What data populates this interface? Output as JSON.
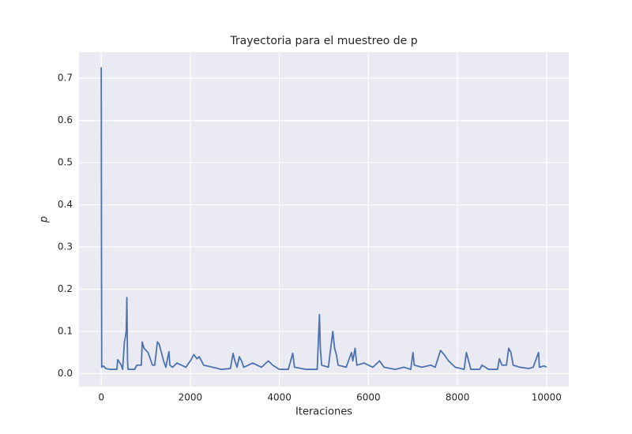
{
  "chart_data": {
    "type": "line",
    "title": "Trayectoria para el muestreo de p",
    "xlabel": "Iteraciones",
    "ylabel": "p",
    "x": [
      0,
      5,
      10,
      50,
      100,
      200,
      350,
      370,
      420,
      450,
      480,
      520,
      540,
      560,
      575,
      590,
      600,
      750,
      800,
      900,
      920,
      960,
      1050,
      1150,
      1200,
      1260,
      1300,
      1350,
      1400,
      1450,
      1520,
      1540,
      1600,
      1700,
      1800,
      1900,
      2000,
      2080,
      2150,
      2200,
      2300,
      2500,
      2700,
      2900,
      2960,
      3000,
      3050,
      3100,
      3150,
      3200,
      3400,
      3600,
      3750,
      3850,
      4000,
      4200,
      4300,
      4340,
      4600,
      4850,
      4900,
      4920,
      4950,
      5100,
      5200,
      5240,
      5280,
      5320,
      5500,
      5620,
      5650,
      5700,
      5740,
      5900,
      6100,
      6250,
      6350,
      6600,
      6800,
      6950,
      7000,
      7030,
      7200,
      7400,
      7500,
      7620,
      7700,
      7800,
      7950,
      8150,
      8200,
      8250,
      8300,
      8500,
      8550,
      8700,
      8900,
      8940,
      9000,
      9100,
      9150,
      9200,
      9250,
      9400,
      9600,
      9700,
      9820,
      9840,
      9950,
      10000
    ],
    "series": [
      {
        "name": "p",
        "color": "#4c72b0",
        "values": [
          0.726,
          0.3,
          0.015,
          0.018,
          0.012,
          0.01,
          0.01,
          0.033,
          0.025,
          0.02,
          0.01,
          0.075,
          0.085,
          0.1,
          0.18,
          0.03,
          0.01,
          0.01,
          0.02,
          0.02,
          0.075,
          0.06,
          0.05,
          0.02,
          0.02,
          0.075,
          0.07,
          0.05,
          0.03,
          0.015,
          0.052,
          0.02,
          0.015,
          0.025,
          0.02,
          0.015,
          0.03,
          0.045,
          0.035,
          0.04,
          0.02,
          0.015,
          0.01,
          0.012,
          0.048,
          0.03,
          0.015,
          0.04,
          0.03,
          0.015,
          0.025,
          0.015,
          0.03,
          0.02,
          0.01,
          0.01,
          0.048,
          0.015,
          0.01,
          0.01,
          0.14,
          0.06,
          0.02,
          0.015,
          0.1,
          0.06,
          0.045,
          0.02,
          0.015,
          0.05,
          0.03,
          0.06,
          0.02,
          0.025,
          0.015,
          0.03,
          0.015,
          0.01,
          0.015,
          0.01,
          0.05,
          0.02,
          0.015,
          0.02,
          0.015,
          0.055,
          0.045,
          0.03,
          0.015,
          0.01,
          0.05,
          0.03,
          0.01,
          0.01,
          0.02,
          0.01,
          0.01,
          0.035,
          0.02,
          0.02,
          0.06,
          0.05,
          0.02,
          0.015,
          0.012,
          0.015,
          0.05,
          0.015,
          0.018,
          0.015
        ]
      }
    ],
    "xlim": [
      -500,
      10500
    ],
    "xticks": [
      0,
      2000,
      4000,
      6000,
      8000,
      10000
    ],
    "ylim": [
      -0.031,
      0.762
    ],
    "yticks": [
      {
        "value": 0,
        "label": "0.0"
      },
      0.1,
      0.2,
      0.3,
      0.4,
      0.5,
      0.6,
      0.7
    ],
    "grid": true
  }
}
